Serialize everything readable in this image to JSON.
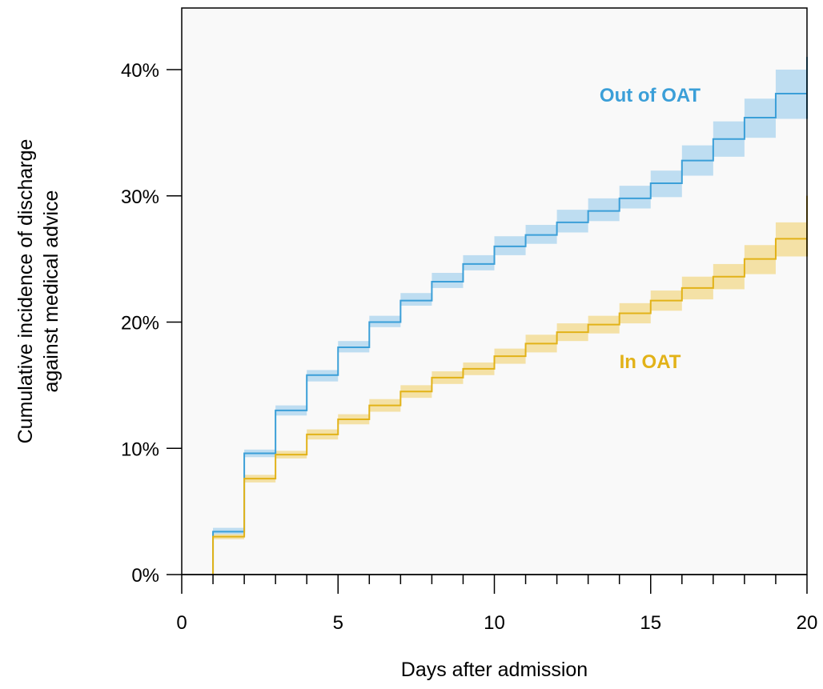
{
  "chart_data": {
    "type": "line",
    "line_style": "step",
    "xlabel": "Days after admission",
    "ylabel_lines": [
      "Cumulative incidence of discharge",
      "against medical advice"
    ],
    "xlim": [
      0,
      20
    ],
    "ylim": [
      0,
      40
    ],
    "x_ticks": [
      0,
      5,
      10,
      15,
      20
    ],
    "x_minor_ticks": [
      1,
      2,
      3,
      4,
      6,
      7,
      8,
      9,
      11,
      12,
      13,
      14,
      16,
      17,
      18,
      19
    ],
    "y_ticks": [
      0,
      10,
      20,
      30,
      40
    ],
    "y_tick_labels": [
      "0%",
      "10%",
      "20%",
      "30%",
      "40%"
    ],
    "grid": false,
    "background": "#f9f9f9",
    "series": [
      {
        "name": "Out of OAT",
        "color": "#3b9fd8",
        "band_color": "#a9d3ee",
        "x": [
          1,
          2,
          3,
          4,
          5,
          6,
          7,
          8,
          9,
          10,
          11,
          12,
          13,
          14,
          15,
          16,
          17,
          18,
          19,
          20
        ],
        "values": [
          3.4,
          9.6,
          13.0,
          15.8,
          18.0,
          20.0,
          21.7,
          23.2,
          24.6,
          26.0,
          26.9,
          27.9,
          28.8,
          29.8,
          31.0,
          32.8,
          34.5,
          36.2,
          38.1,
          41.0
        ],
        "lower": [
          3.2,
          9.3,
          12.6,
          15.3,
          17.6,
          19.6,
          21.3,
          22.7,
          24.1,
          25.3,
          26.2,
          27.1,
          28.0,
          29.0,
          29.9,
          31.6,
          33.1,
          34.6,
          36.1,
          36.1
        ],
        "upper": [
          3.7,
          9.9,
          13.4,
          16.2,
          18.5,
          20.5,
          22.3,
          23.9,
          25.3,
          26.8,
          27.7,
          28.9,
          29.8,
          30.8,
          32.0,
          34.0,
          35.9,
          37.7,
          40.0,
          41.0
        ]
      },
      {
        "name": "In OAT",
        "color": "#e2b218",
        "band_color": "#f2d88a",
        "x": [
          1,
          2,
          3,
          4,
          5,
          6,
          7,
          8,
          9,
          10,
          11,
          12,
          13,
          14,
          15,
          16,
          17,
          18,
          19,
          20
        ],
        "values": [
          3.0,
          7.6,
          9.5,
          11.1,
          12.3,
          13.4,
          14.5,
          15.6,
          16.3,
          17.3,
          18.3,
          19.2,
          19.8,
          20.7,
          21.7,
          22.7,
          23.6,
          25.0,
          26.6,
          30.0
        ],
        "lower": [
          2.8,
          7.3,
          9.2,
          10.7,
          11.9,
          12.9,
          14.0,
          15.1,
          15.8,
          16.7,
          17.6,
          18.5,
          19.1,
          19.9,
          20.9,
          21.8,
          22.6,
          23.8,
          25.2,
          25.2
        ],
        "upper": [
          3.2,
          7.9,
          9.8,
          11.5,
          12.7,
          13.9,
          15.0,
          16.1,
          16.8,
          17.9,
          19.0,
          19.9,
          20.5,
          21.5,
          22.5,
          23.6,
          24.6,
          26.1,
          27.9,
          30.0
        ]
      }
    ],
    "annotations": [
      {
        "text": "Out of OAT",
        "series": 0
      },
      {
        "text": "In OAT",
        "series": 1
      }
    ]
  }
}
